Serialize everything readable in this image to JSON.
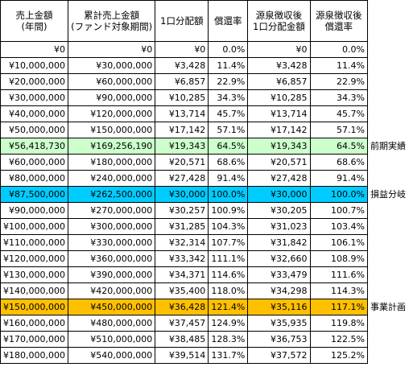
{
  "headers": [
    "売上金額\n(年間)",
    "累計売上金額\n(ファンド対象期間)",
    "1口分配額",
    "償還率",
    "源泉徴収後\n1口分配金額",
    "源泉徴収後\n償還率"
  ],
  "rows": [
    {
      "cells": [
        "¥0",
        "¥0",
        "¥0",
        "0.0%",
        "¥0",
        "0.0%"
      ],
      "note": "",
      "hl": ""
    },
    {
      "cells": [
        "¥10,000,000",
        "¥30,000,000",
        "¥3,428",
        "11.4%",
        "¥3,428",
        "11.4%"
      ],
      "note": "",
      "hl": ""
    },
    {
      "cells": [
        "¥20,000,000",
        "¥60,000,000",
        "¥6,857",
        "22.9%",
        "¥6,857",
        "22.9%"
      ],
      "note": "",
      "hl": ""
    },
    {
      "cells": [
        "¥30,000,000",
        "¥90,000,000",
        "¥10,285",
        "34.3%",
        "¥10,285",
        "34.3%"
      ],
      "note": "",
      "hl": ""
    },
    {
      "cells": [
        "¥40,000,000",
        "¥120,000,000",
        "¥13,714",
        "45.7%",
        "¥13,714",
        "45.7%"
      ],
      "note": "",
      "hl": ""
    },
    {
      "cells": [
        "¥50,000,000",
        "¥150,000,000",
        "¥17,142",
        "57.1%",
        "¥17,142",
        "57.1%"
      ],
      "note": "",
      "hl": ""
    },
    {
      "cells": [
        "¥56,418,730",
        "¥169,256,190",
        "¥19,343",
        "64.5%",
        "¥19,343",
        "64.5%"
      ],
      "note": "前期実績",
      "hl": "green"
    },
    {
      "cells": [
        "¥60,000,000",
        "¥180,000,000",
        "¥20,571",
        "68.6%",
        "¥20,571",
        "68.6%"
      ],
      "note": "",
      "hl": ""
    },
    {
      "cells": [
        "¥80,000,000",
        "¥240,000,000",
        "¥27,428",
        "91.4%",
        "¥27,428",
        "91.4%"
      ],
      "note": "",
      "hl": ""
    },
    {
      "cells": [
        "¥87,500,000",
        "¥262,500,000",
        "¥30,000",
        "100.0%",
        "¥30,000",
        "100.0%"
      ],
      "note": "損益分岐",
      "hl": "blue"
    },
    {
      "cells": [
        "¥90,000,000",
        "¥270,000,000",
        "¥30,257",
        "100.9%",
        "¥30,205",
        "100.7%"
      ],
      "note": "",
      "hl": ""
    },
    {
      "cells": [
        "¥100,000,000",
        "¥300,000,000",
        "¥31,285",
        "104.3%",
        "¥31,023",
        "103.4%"
      ],
      "note": "",
      "hl": ""
    },
    {
      "cells": [
        "¥110,000,000",
        "¥330,000,000",
        "¥32,314",
        "107.7%",
        "¥31,842",
        "106.1%"
      ],
      "note": "",
      "hl": ""
    },
    {
      "cells": [
        "¥120,000,000",
        "¥360,000,000",
        "¥33,342",
        "111.1%",
        "¥32,660",
        "108.9%"
      ],
      "note": "",
      "hl": ""
    },
    {
      "cells": [
        "¥130,000,000",
        "¥390,000,000",
        "¥34,371",
        "114.6%",
        "¥33,479",
        "111.6%"
      ],
      "note": "",
      "hl": ""
    },
    {
      "cells": [
        "¥140,000,000",
        "¥420,000,000",
        "¥35,400",
        "118.0%",
        "¥34,298",
        "114.3%"
      ],
      "note": "",
      "hl": ""
    },
    {
      "cells": [
        "¥150,000,000",
        "¥450,000,000",
        "¥36,428",
        "121.4%",
        "¥35,116",
        "117.1%"
      ],
      "note": "事業計画",
      "hl": "orange"
    },
    {
      "cells": [
        "¥160,000,000",
        "¥480,000,000",
        "¥37,457",
        "124.9%",
        "¥35,935",
        "119.8%"
      ],
      "note": "",
      "hl": ""
    },
    {
      "cells": [
        "¥170,000,000",
        "¥510,000,000",
        "¥38,485",
        "128.3%",
        "¥36,753",
        "122.5%"
      ],
      "note": "",
      "hl": ""
    },
    {
      "cells": [
        "¥180,000,000",
        "¥540,000,000",
        "¥39,514",
        "131.7%",
        "¥37,572",
        "125.2%"
      ],
      "note": "",
      "hl": ""
    }
  ]
}
